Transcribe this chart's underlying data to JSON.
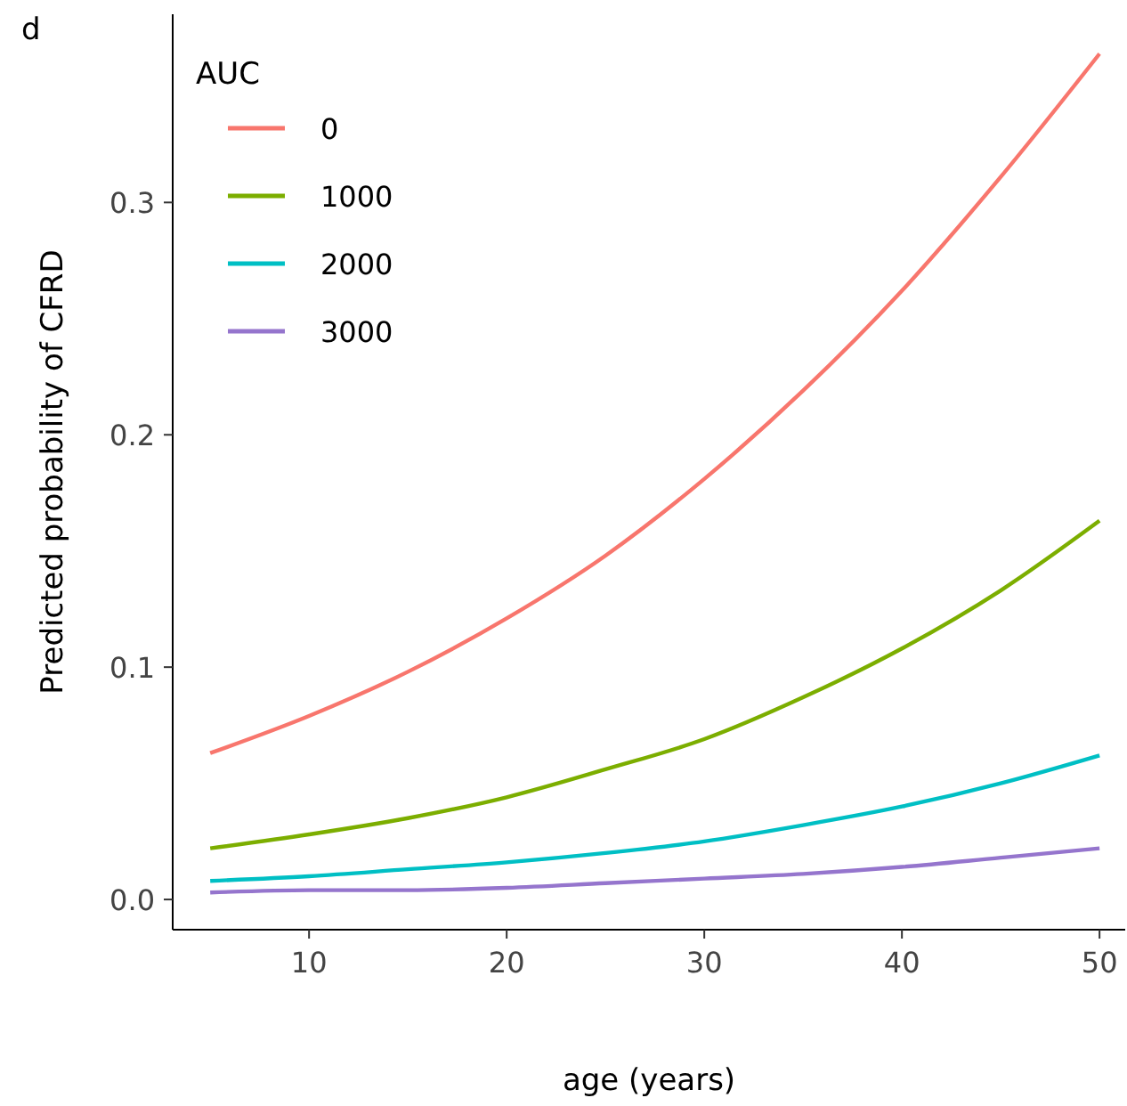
{
  "chart_data": {
    "type": "line",
    "xlabel": "age (years)",
    "ylabel": "Predicted probability of CFRD",
    "legend_title": "AUC",
    "annotations": [
      "d"
    ],
    "x": [
      5,
      10,
      15,
      20,
      25,
      30,
      35,
      40,
      45,
      50
    ],
    "series": [
      {
        "name": "0",
        "color": "#f8766d",
        "values": [
          0.063,
          0.079,
          0.098,
          0.121,
          0.148,
          0.181,
          0.219,
          0.262,
          0.311,
          0.364
        ]
      },
      {
        "name": "1000",
        "color": "#7cae00",
        "values": [
          0.022,
          0.028,
          0.035,
          0.044,
          0.056,
          0.069,
          0.087,
          0.108,
          0.133,
          0.163
        ]
      },
      {
        "name": "2000",
        "color": "#00bfc4",
        "values": [
          0.008,
          0.01,
          0.013,
          0.016,
          0.02,
          0.025,
          0.032,
          0.04,
          0.05,
          0.062
        ]
      },
      {
        "name": "3000",
        "color": "#9575cd",
        "values": [
          0.003,
          0.004,
          0.004,
          0.005,
          0.007,
          0.009,
          0.011,
          0.014,
          0.018,
          0.022
        ]
      }
    ],
    "xlim": [
      3.1,
      51.3
    ],
    "ylim": [
      -0.013,
      0.381
    ],
    "xticks": [
      10,
      20,
      30,
      40,
      50
    ],
    "yticks": [
      {
        "value": 0,
        "label": "0.0"
      },
      {
        "value": 0.1,
        "label": "0.1"
      },
      {
        "value": 0.2,
        "label": "0.2"
      },
      {
        "value": 0.3,
        "label": "0.3"
      }
    ],
    "grid": false,
    "legend": "top left",
    "marker": "none",
    "line_style": "solid"
  }
}
